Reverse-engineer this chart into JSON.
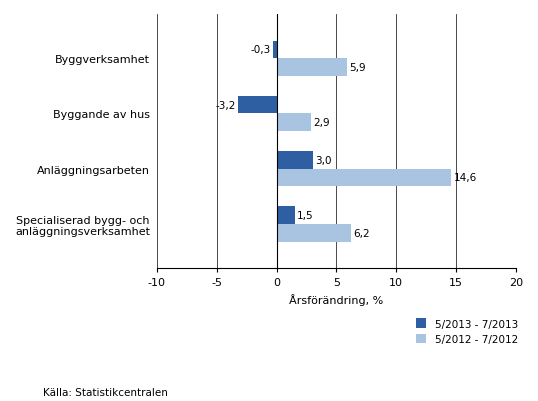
{
  "categories": [
    "Byggverksamhet",
    "Byggande av hus",
    "Anläggningsarbeten",
    "Specialiserad bygg- och\nanläggningsverksamhet"
  ],
  "series_2013": [
    -0.3,
    -3.2,
    3.0,
    1.5
  ],
  "series_2012": [
    5.9,
    2.9,
    14.6,
    6.2
  ],
  "color_2013": "#2E5FA3",
  "color_2012": "#A8C4E0",
  "xlim": [
    -10,
    20
  ],
  "xticks": [
    -10,
    -5,
    0,
    5,
    10,
    15,
    20
  ],
  "xlabel": "Årsförändring, %",
  "legend_2013": "5/2013 - 7/2013",
  "legend_2012": "5/2012 - 7/2012",
  "source": "Källa: Statistikcentralen",
  "bar_height": 0.32,
  "figsize": [
    5.38,
    4.02
  ],
  "dpi": 100
}
